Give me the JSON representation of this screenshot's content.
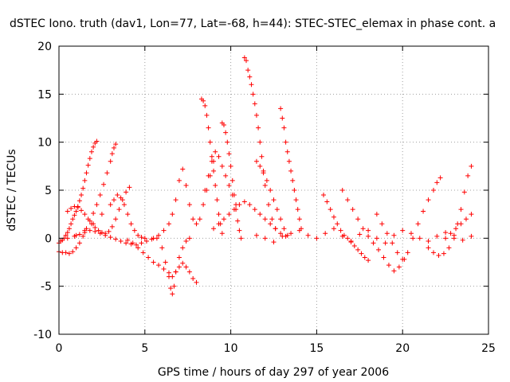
{
  "chart_data": {
    "type": "scatter",
    "title": "dSTEC Iono. truth (dav1, Lon=77, Lat=-68, h=44): STEC-STEC_elemax in phase cont. a",
    "xlabel": "GPS time / hours of day 297 of year 2006",
    "ylabel": "dSTEC  / TECUs",
    "xlim": [
      0,
      25
    ],
    "ylim": [
      -10,
      20
    ],
    "xticks": [
      0,
      5,
      10,
      15,
      20,
      25
    ],
    "yticks": [
      -10,
      -5,
      0,
      5,
      10,
      15,
      20
    ],
    "grid": true,
    "marker": "plus",
    "color": "#ff0000",
    "series": [
      {
        "x": [
          0.0,
          0.1,
          0.2,
          0.3,
          0.4,
          0.5,
          0.6,
          0.7,
          0.8,
          0.9,
          1.0,
          1.1,
          1.2,
          1.3,
          1.4,
          1.5,
          1.6,
          1.7,
          1.8,
          1.9,
          2.0,
          2.1,
          2.2
        ],
        "y": [
          -0.5,
          -0.3,
          -0.2,
          0.0,
          0.3,
          0.6,
          1.0,
          1.5,
          2.0,
          2.4,
          2.8,
          3.3,
          3.9,
          4.5,
          5.2,
          6.0,
          6.8,
          7.6,
          8.3,
          9.0,
          9.5,
          9.9,
          10.1
        ]
      },
      {
        "x": [
          0.0,
          0.2,
          0.4,
          0.6,
          0.8,
          1.0,
          1.2,
          1.4,
          1.6,
          1.8,
          2.0,
          2.2,
          2.4,
          2.6,
          2.8,
          3.0,
          3.1,
          3.2,
          3.3
        ],
        "y": [
          -1.4,
          -1.5,
          -1.5,
          -1.6,
          -1.4,
          -1.0,
          -0.5,
          0.2,
          1.0,
          1.8,
          2.6,
          3.5,
          4.5,
          5.6,
          6.8,
          8.0,
          8.8,
          9.4,
          9.8
        ]
      },
      {
        "x": [
          0.5,
          0.7,
          0.9,
          1.1,
          1.3,
          1.5,
          1.7,
          1.9,
          2.1,
          2.3,
          2.5,
          2.7,
          2.9,
          3.1,
          3.3,
          3.5,
          3.7,
          3.9,
          4.1
        ],
        "y": [
          2.8,
          3.1,
          3.3,
          3.2,
          2.9,
          2.5,
          2.0,
          1.5,
          1.1,
          0.8,
          0.6,
          0.5,
          0.7,
          1.2,
          2.0,
          3.0,
          4.0,
          4.8,
          5.3
        ]
      },
      {
        "x": [
          0.5,
          1.0,
          1.5,
          2.0,
          2.5,
          3.0,
          3.2,
          3.4,
          3.6,
          3.8,
          4.0,
          4.2,
          4.4,
          4.6,
          4.8,
          5.0
        ],
        "y": [
          0.0,
          0.3,
          0.8,
          1.5,
          2.5,
          3.5,
          4.0,
          4.5,
          4.2,
          3.5,
          2.5,
          1.5,
          0.8,
          0.3,
          0.1,
          0.0
        ]
      },
      {
        "x": [
          0.9,
          1.2,
          1.5,
          1.8,
          2.1,
          2.4,
          2.7,
          3.0,
          3.3,
          3.6,
          3.9,
          4.2,
          4.5,
          4.8,
          5.1,
          5.4,
          5.7
        ],
        "y": [
          0.2,
          0.4,
          0.6,
          0.8,
          0.7,
          0.5,
          0.3,
          0.1,
          -0.1,
          -0.3,
          -0.5,
          -0.6,
          -0.7,
          -0.5,
          -0.3,
          -0.1,
          0.0
        ]
      },
      {
        "x": [
          4.0,
          4.3,
          4.6,
          4.9,
          5.2,
          5.5,
          5.8,
          6.1,
          6.4,
          6.6,
          6.8,
          7.0,
          7.2,
          7.4,
          7.6,
          7.8,
          8.0
        ],
        "y": [
          -0.2,
          -0.5,
          -1.0,
          -1.5,
          -2.0,
          -2.5,
          -2.8,
          -3.2,
          -3.6,
          -4.0,
          -3.5,
          -3.0,
          -2.6,
          -3.0,
          -3.5,
          -4.2,
          -4.6
        ]
      },
      {
        "x": [
          6.0,
          6.2,
          6.4,
          6.5,
          6.6,
          6.7,
          6.8,
          7.0,
          7.2,
          7.4,
          7.6
        ],
        "y": [
          -1.0,
          -2.5,
          -4.0,
          -5.2,
          -5.8,
          -5.0,
          -3.5,
          -2.0,
          -1.0,
          -0.3,
          0.0
        ]
      },
      {
        "x": [
          5.5,
          5.8,
          6.1,
          6.4,
          6.6,
          6.8,
          7.0,
          7.2,
          7.4,
          7.6,
          7.8,
          8.0,
          8.2,
          8.4,
          8.6,
          8.8,
          9.0
        ],
        "y": [
          0.0,
          0.3,
          0.8,
          1.5,
          2.5,
          4.0,
          6.0,
          7.2,
          5.5,
          3.5,
          2.0,
          1.5,
          2.0,
          3.5,
          5.0,
          6.5,
          8.0
        ]
      },
      {
        "x": [
          8.3,
          8.4,
          8.5,
          8.6,
          8.7,
          8.8,
          8.9,
          9.0,
          9.1,
          9.2,
          9.3,
          9.4,
          9.5
        ],
        "y": [
          14.5,
          14.3,
          13.8,
          12.8,
          11.5,
          10.0,
          8.5,
          7.0,
          5.5,
          4.0,
          2.5,
          1.5,
          0.5
        ]
      },
      {
        "x": [
          8.5,
          8.7,
          8.9,
          9.1,
          9.3,
          9.5,
          9.7,
          9.9,
          10.1,
          10.3
        ],
        "y": [
          5.0,
          6.5,
          8.0,
          9.0,
          8.5,
          7.5,
          6.5,
          5.5,
          4.5,
          3.5
        ]
      },
      {
        "x": [
          9.5,
          9.6,
          9.7,
          9.8,
          9.9,
          10.0,
          10.1,
          10.2,
          10.3,
          10.4,
          10.5,
          10.6
        ],
        "y": [
          12.0,
          11.8,
          11.0,
          10.0,
          8.8,
          7.5,
          6.0,
          4.5,
          3.0,
          1.8,
          0.8,
          0.0
        ]
      },
      {
        "x": [
          9.0,
          9.3,
          9.6,
          9.9,
          10.2,
          10.5,
          10.8,
          11.1,
          11.4,
          11.7,
          12.0,
          12.3,
          12.6,
          12.9,
          13.2
        ],
        "y": [
          1.0,
          1.5,
          2.0,
          2.5,
          3.0,
          3.5,
          3.8,
          3.5,
          3.0,
          2.5,
          2.0,
          1.5,
          1.0,
          0.5,
          0.2
        ]
      },
      {
        "x": [
          10.8,
          10.9,
          11.0,
          11.1,
          11.2,
          11.3,
          11.4,
          11.5,
          11.6,
          11.7,
          11.8,
          11.9,
          12.0,
          12.2,
          12.4,
          12.6
        ],
        "y": [
          18.8,
          18.5,
          17.5,
          16.8,
          16.0,
          15.0,
          14.0,
          12.8,
          11.5,
          10.0,
          8.5,
          7.0,
          5.5,
          3.5,
          2.0,
          1.0
        ]
      },
      {
        "x": [
          11.5,
          11.7,
          11.9,
          12.1,
          12.3,
          12.5,
          12.7,
          12.9,
          13.1,
          13.3
        ],
        "y": [
          8.0,
          7.5,
          6.8,
          6.0,
          5.0,
          4.0,
          3.0,
          2.0,
          1.0,
          0.3
        ]
      },
      {
        "x": [
          12.9,
          13.0,
          13.1,
          13.2,
          13.3,
          13.4,
          13.5,
          13.6,
          13.7,
          13.8,
          13.9,
          14.0,
          14.1
        ],
        "y": [
          13.5,
          12.5,
          11.5,
          10.0,
          9.0,
          8.0,
          7.0,
          6.0,
          5.0,
          4.0,
          3.0,
          2.0,
          1.0
        ]
      },
      {
        "x": [
          11.5,
          12.0,
          12.5,
          13.0,
          13.5,
          14.0,
          14.5,
          15.0,
          15.5,
          16.0,
          16.5,
          17.0,
          17.5,
          18.0,
          18.5,
          19.0,
          19.5,
          20.0,
          20.5,
          21.0,
          21.5,
          22.0,
          22.5,
          23.0,
          23.5,
          24.0
        ],
        "y": [
          0.3,
          0.0,
          -0.4,
          0.2,
          0.5,
          0.8,
          0.3,
          0.0,
          0.5,
          1.0,
          0.2,
          -0.3,
          0.4,
          0.8,
          0.0,
          -0.5,
          0.3,
          0.8,
          0.5,
          0.0,
          -0.3,
          0.2,
          0.6,
          0.3,
          -0.2,
          0.2
        ]
      },
      {
        "x": [
          15.4,
          15.6,
          15.8,
          16.0,
          16.2,
          16.4,
          16.6,
          16.8,
          17.0,
          17.2,
          17.4,
          17.6,
          17.8,
          18.0
        ],
        "y": [
          4.5,
          3.8,
          3.0,
          2.2,
          1.5,
          0.8,
          0.3,
          0.0,
          -0.4,
          -0.8,
          -1.2,
          -1.6,
          -2.0,
          -2.3
        ]
      },
      {
        "x": [
          16.5,
          16.8,
          17.1,
          17.4,
          17.7,
          18.0,
          18.3,
          18.6,
          18.9,
          19.2,
          19.5,
          19.8,
          20.1
        ],
        "y": [
          5.0,
          4.0,
          3.0,
          2.0,
          1.0,
          0.2,
          -0.5,
          -1.2,
          -2.0,
          -2.8,
          -3.4,
          -3.0,
          -2.2
        ]
      },
      {
        "x": [
          18.5,
          18.8,
          19.1,
          19.4,
          19.7,
          20.0,
          20.3,
          20.6,
          20.9,
          21.2,
          21.5,
          21.8,
          22.0,
          22.2
        ],
        "y": [
          2.5,
          1.5,
          0.5,
          -0.5,
          -1.5,
          -2.2,
          -1.5,
          0.0,
          1.5,
          2.8,
          4.0,
          5.0,
          5.8,
          6.3
        ]
      },
      {
        "x": [
          21.5,
          21.8,
          22.1,
          22.4,
          22.7,
          23.0,
          23.2,
          23.4,
          23.6,
          23.8,
          24.0
        ],
        "y": [
          -1.0,
          -1.5,
          -1.8,
          -1.6,
          -1.0,
          0.0,
          1.5,
          3.0,
          4.8,
          6.5,
          7.5
        ]
      },
      {
        "x": [
          22.5,
          22.8,
          23.1,
          23.4,
          23.7,
          24.0
        ],
        "y": [
          0.0,
          0.5,
          1.0,
          1.5,
          2.0,
          2.5
        ]
      }
    ]
  }
}
